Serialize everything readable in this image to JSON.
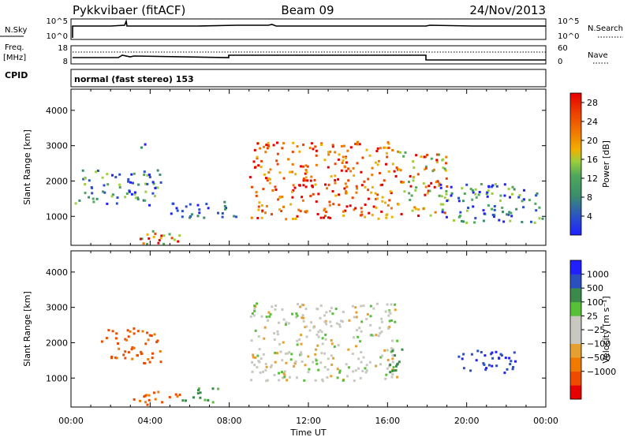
{
  "header": {
    "station": "Pykkvibaer (fitACF)",
    "beam": "Beam 09",
    "date": "24/Nov/2013"
  },
  "noise_panel": {
    "left_label": "N.Sky",
    "left_ticks": [
      "10^5",
      "10^0"
    ],
    "right_ticks": [
      "10^5",
      "10^0"
    ],
    "right_label": "N.Search"
  },
  "freq_panel": {
    "left_label_1": "Freq.",
    "left_label_2": "[MHz]",
    "left_ticks": [
      "18",
      "8"
    ],
    "right_ticks": [
      "60",
      "0"
    ],
    "right_label": "Nave"
  },
  "cpid_panel": {
    "label": "CPID",
    "mode": "normal (fast stereo) 153"
  },
  "colors": {
    "power": [
      "#2020ff",
      "#2a52c8",
      "#3a8f6a",
      "#4fa85a",
      "#9ccf3c",
      "#f0b000",
      "#f07a00",
      "#ee4400",
      "#e80000"
    ],
    "velocity": [
      "#e80000",
      "#ef4b00",
      "#f07a00",
      "#e6a030",
      "#c8c8c0",
      "#c8c8c0",
      "#58c038",
      "#3b8a4c",
      "#2a50c0",
      "#2020ff"
    ]
  },
  "chart_data": [
    {
      "type": "heatmap",
      "panel": "power",
      "ylabel": "Slant Range [km]",
      "yticks": [
        "1000",
        "2000",
        "3000",
        "4000"
      ],
      "ylim": [
        180,
        4600
      ],
      "xlim": [
        "00:00",
        "24:00"
      ],
      "colorbar_label": "Power [dB]",
      "colorbar_ticks": [
        "4",
        "8",
        "12",
        "16",
        "20",
        "24",
        "28"
      ],
      "clim": [
        0,
        30
      ],
      "regions": [
        {
          "time": [
            "00:10",
            "04:30"
          ],
          "range": [
            1300,
            2300
          ],
          "level": "low-mid"
        },
        {
          "time": [
            "03:30",
            "04:10"
          ],
          "range": [
            2900,
            3100
          ],
          "level": "low"
        },
        {
          "time": [
            "03:00",
            "06:00"
          ],
          "range": [
            200,
            600
          ],
          "level": "mid-high"
        },
        {
          "time": [
            "05:00",
            "08:20"
          ],
          "range": [
            900,
            1400
          ],
          "level": "low"
        },
        {
          "time": [
            "09:00",
            "16:30"
          ],
          "range": [
            900,
            3100
          ],
          "level": "high"
        },
        {
          "time": [
            "16:30",
            "19:00"
          ],
          "range": [
            1000,
            2800
          ],
          "level": "mid-high"
        },
        {
          "time": [
            "18:30",
            "24:00"
          ],
          "range": [
            800,
            1900
          ],
          "level": "low-mid"
        }
      ]
    },
    {
      "type": "heatmap",
      "panel": "velocity",
      "ylabel": "Slant Range [km]",
      "yticks": [
        "1000",
        "2000",
        "3000",
        "4000"
      ],
      "ylim": [
        180,
        4600
      ],
      "xlabel": "Time UT",
      "xticks": [
        "00:00",
        "04:00",
        "08:00",
        "12:00",
        "16:00",
        "20:00",
        "00:00"
      ],
      "xlim": [
        "00:00",
        "24:00"
      ],
      "colorbar_label": "Velocity [m s⁻¹]",
      "colorbar_ticks": [
        "1000",
        "500",
        "100",
        "25",
        "−25",
        "−100",
        "−500",
        "−1000"
      ],
      "regions": [
        {
          "time": [
            "01:30",
            "04:30"
          ],
          "range": [
            1400,
            2400
          ],
          "velocity": -400
        },
        {
          "time": [
            "03:00",
            "05:30"
          ],
          "range": [
            200,
            600
          ],
          "velocity": -300
        },
        {
          "time": [
            "05:30",
            "07:30"
          ],
          "range": [
            300,
            700
          ],
          "velocity": 80
        },
        {
          "time": [
            "09:00",
            "16:30"
          ],
          "range": [
            900,
            3100
          ],
          "velocity": 0
        },
        {
          "time": [
            "16:00",
            "16:50"
          ],
          "range": [
            1000,
            1800
          ],
          "velocity": 120
        },
        {
          "time": [
            "19:30",
            "22:30"
          ],
          "range": [
            1100,
            1800
          ],
          "velocity": 700
        }
      ]
    }
  ]
}
